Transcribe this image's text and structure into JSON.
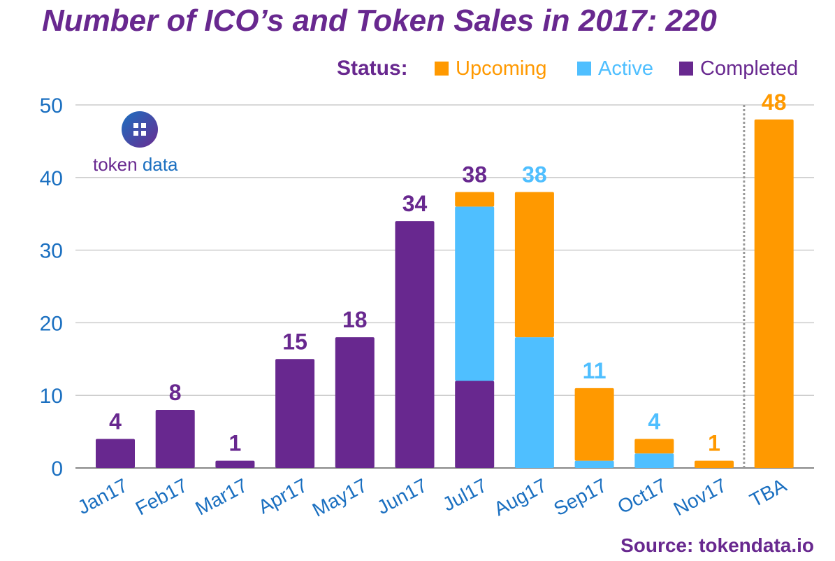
{
  "chart_data": {
    "type": "bar",
    "stacked": true,
    "title": "Number of ICO’s and Token Sales in 2017: 220",
    "legend_title": "Status:",
    "legend_placement": "top-right",
    "source": "Source: tokendata.io",
    "logo_text": [
      "token",
      "data"
    ],
    "categories": [
      "Jan17",
      "Feb17",
      "Mar17",
      "Apr17",
      "May17",
      "Jun17",
      "Jul17",
      "Aug17",
      "Sep17",
      "Oct17",
      "Nov17",
      "TBA"
    ],
    "series": [
      {
        "name": "Completed",
        "color": "#68288f",
        "values": [
          4,
          8,
          1,
          15,
          18,
          34,
          12,
          0,
          0,
          0,
          0,
          0
        ]
      },
      {
        "name": "Active",
        "color": "#4fbfff",
        "values": [
          0,
          0,
          0,
          0,
          0,
          0,
          24,
          18,
          1,
          2,
          0,
          0
        ]
      },
      {
        "name": "Upcoming",
        "color": "#ff9900",
        "values": [
          0,
          0,
          0,
          0,
          0,
          0,
          2,
          20,
          10,
          2,
          1,
          48
        ]
      }
    ],
    "legend_order": [
      "Upcoming",
      "Active",
      "Completed"
    ],
    "totals": [
      4,
      8,
      1,
      15,
      18,
      34,
      38,
      38,
      11,
      4,
      1,
      48
    ],
    "total_label_colors": [
      "#68288f",
      "#68288f",
      "#68288f",
      "#68288f",
      "#68288f",
      "#68288f",
      "#68288f",
      "#4fbfff",
      "#4fbfff",
      "#4fbfff",
      "#ff9900",
      "#ff9900"
    ],
    "yticks": [
      0,
      10,
      20,
      30,
      40,
      50
    ],
    "ylim": [
      0,
      50
    ],
    "grid": true,
    "separator_before": "TBA"
  }
}
